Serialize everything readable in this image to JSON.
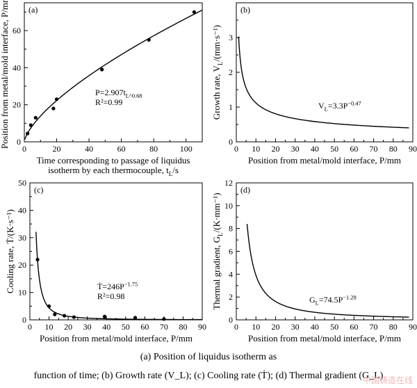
{
  "caption": {
    "line1": "(a) Position of liquidus isotherm as",
    "line2": "function of time; (b) Growth rate (V_L); (c) Cooling rate (Ṫ); (d) Thermal gradient (G_L)"
  },
  "watermark": "中国铸造在线",
  "chart_data": [
    {
      "panel_label": "(a)",
      "type": "scatter",
      "xlabel": "Time corresponding to passage of liquidus isotherm by each thermocouple, t_L/s",
      "ylabel": "Position from metal/mold interface, P/mm",
      "xlim": [
        0,
        110
      ],
      "ylim": [
        0,
        75
      ],
      "xticks": [
        0,
        20,
        40,
        60,
        80,
        100
      ],
      "yticks": [
        0,
        20,
        40,
        60
      ],
      "points": [
        [
          2,
          4.5
        ],
        [
          4,
          9
        ],
        [
          7,
          13
        ],
        [
          18,
          18
        ],
        [
          20,
          23
        ],
        [
          48,
          39
        ],
        [
          77,
          55
        ],
        [
          105,
          70
        ]
      ],
      "fit": {
        "coef": 2.907,
        "exp": 0.68,
        "x_min": 0.3,
        "x_max": 110
      },
      "equation": "P=2.907t_L^0.68",
      "r2": "R²=0.99"
    },
    {
      "panel_label": "(b)",
      "type": "line",
      "xlabel": "Position from metal/mold interface, P/mm",
      "ylabel": "Growth rate, V_L/(mm·s⁻¹)",
      "xlim": [
        0,
        90
      ],
      "ylim": [
        0,
        4
      ],
      "xticks": [
        0,
        10,
        20,
        30,
        40,
        50,
        60,
        70,
        80,
        90
      ],
      "yticks": [
        0,
        1,
        2,
        3
      ],
      "fit": {
        "coef": 3.3,
        "exp": -0.47,
        "x_min": 1.2,
        "x_max": 88
      },
      "equation": "V_L=3.3P^−0.47"
    },
    {
      "panel_label": "(c)",
      "type": "scatter",
      "xlabel": "Position from metal/mold interface, P/mm",
      "ylabel": "Cooling rate, Ṫ/(K·s⁻¹)",
      "xlim": [
        0,
        90
      ],
      "ylim": [
        0,
        50
      ],
      "xticks": [
        0,
        10,
        20,
        30,
        40,
        50,
        60,
        70,
        80,
        90
      ],
      "yticks": [
        0,
        10,
        20,
        30,
        40,
        50
      ],
      "points": [
        [
          4,
          22
        ],
        [
          10,
          5
        ],
        [
          13,
          2
        ],
        [
          18,
          1.5
        ],
        [
          23,
          1
        ],
        [
          39,
          1.2
        ],
        [
          55,
          0.8
        ],
        [
          70,
          0.3
        ]
      ],
      "fit": {
        "coef": 246,
        "exp": -1.75,
        "x_min": 3.2,
        "x_max": 90
      },
      "equation": "Ṫ=246P^−1.75",
      "r2": "R²=0.98"
    },
    {
      "panel_label": "(d)",
      "type": "line",
      "xlabel": "Position from metal/mold interface, P/mm",
      "ylabel": "Thermal gradient, G_L/(K·mm⁻¹)",
      "xlim": [
        0,
        90
      ],
      "ylim": [
        0,
        12
      ],
      "xticks": [
        0,
        10,
        20,
        30,
        40,
        50,
        60,
        70,
        80,
        90
      ],
      "yticks": [
        0,
        2,
        4,
        6,
        8,
        10,
        12
      ],
      "fit": {
        "coef": 74.5,
        "exp": -1.28,
        "x_min": 5.5,
        "x_max": 88
      },
      "equation": "G_L=74.5P^−1.28"
    }
  ]
}
